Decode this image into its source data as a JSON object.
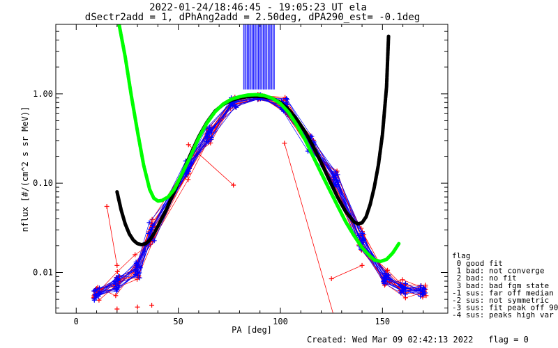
{
  "chart_data": {
    "type": "scatter",
    "title": "2022-01-24/18:46:45 - 19:05:23 UT ela",
    "subtitle": "dSectr2add = 1, dPhAng2add = 2.50deg, dPA290_est=  -0.1deg",
    "xlabel": "PA [deg]",
    "ylabel": "nflux [#/(cm^2 s sr MeV)]",
    "xlim": [
      -10,
      182
    ],
    "ylim": [
      0.0035,
      6.0
    ],
    "y_scale": "log",
    "x_ticks": [
      0,
      50,
      100,
      150
    ],
    "x_tick_labels": [
      "0",
      "50",
      "100",
      "150"
    ],
    "y_ticks": [
      0.01,
      0.1,
      1.0
    ],
    "y_tick_labels": [
      "0.01",
      "0.10",
      "1.00"
    ],
    "legend_placement": "right",
    "legend_title": "flag",
    "legend_entries": [
      " 0 good fit",
      " 1 bad: not converge",
      " 2 bad: no fit",
      " 3 bad: bad fgm state",
      "-1 sus: far off median",
      "-2 sus: not symmetric",
      "-3 sus: fit peak off 90",
      "-4 sus: peaks high var"
    ],
    "colors": {
      "red_series": "#ff0000",
      "blue_series": "#0000ff",
      "green_fit": "#00ff00",
      "black_fit": "#000000"
    },
    "green_fit": {
      "x": [
        21,
        24,
        27,
        30,
        33,
        36,
        38,
        40,
        42,
        45,
        48,
        52,
        56,
        60,
        64,
        68,
        72,
        76,
        80,
        84,
        88,
        92,
        96,
        100,
        104,
        108,
        112,
        116,
        120,
        124,
        128,
        132,
        136,
        140,
        143,
        146,
        149,
        152,
        155,
        158
      ],
      "y": [
        6.0,
        2.6,
        0.95,
        0.38,
        0.16,
        0.085,
        0.068,
        0.063,
        0.064,
        0.07,
        0.085,
        0.13,
        0.2,
        0.32,
        0.47,
        0.63,
        0.77,
        0.87,
        0.93,
        0.97,
        0.98,
        0.96,
        0.89,
        0.78,
        0.62,
        0.45,
        0.31,
        0.2,
        0.13,
        0.085,
        0.056,
        0.037,
        0.026,
        0.019,
        0.016,
        0.0138,
        0.0133,
        0.014,
        0.0165,
        0.021
      ]
    },
    "black_fit": {
      "x": [
        20,
        22,
        24,
        26,
        28,
        30,
        32,
        34,
        36,
        38,
        40,
        44,
        48,
        52,
        56,
        60,
        64,
        68,
        72,
        76,
        80,
        84,
        88,
        92,
        96,
        100,
        104,
        108,
        112,
        116,
        120,
        124,
        128,
        132,
        136,
        138,
        140,
        142,
        144,
        146,
        148,
        150,
        152,
        153
      ],
      "y": [
        0.08,
        0.05,
        0.035,
        0.027,
        0.023,
        0.021,
        0.0205,
        0.021,
        0.023,
        0.027,
        0.033,
        0.05,
        0.08,
        0.13,
        0.21,
        0.33,
        0.48,
        0.64,
        0.76,
        0.85,
        0.9,
        0.93,
        0.94,
        0.93,
        0.89,
        0.8,
        0.67,
        0.52,
        0.38,
        0.26,
        0.17,
        0.108,
        0.07,
        0.048,
        0.037,
        0.035,
        0.036,
        0.042,
        0.058,
        0.09,
        0.16,
        0.35,
        1.2,
        4.5
      ]
    },
    "pa_bins": [
      10,
      20,
      30,
      37,
      55,
      65,
      77,
      90,
      102,
      115,
      127,
      140,
      152,
      160,
      170
    ],
    "median_profile": [
      0.0055,
      0.0075,
      0.011,
      0.028,
      0.15,
      0.35,
      0.8,
      0.92,
      0.75,
      0.28,
      0.11,
      0.022,
      0.0085,
      0.0065,
      0.0062
    ],
    "red_series": [
      {
        "y": [
          0.0058,
          0.0102,
          0.0158,
          0.0206,
          0.1097,
          0.3126,
          0.796,
          0.954,
          0.9126,
          0.2656,
          0.1179,
          0.0185,
          0.0106,
          0.0076,
          0.0059
        ]
      },
      {
        "y": [
          0.0061,
          0.0076,
          0.0097,
          0.0393,
          0.1662,
          0.3565,
          0.6911,
          0.9119,
          0.5873,
          0.3126,
          0.0975,
          0.0185,
          0.0072,
          0.0083,
          0.0067
        ]
      },
      {
        "y": [
          0.0068,
          0.0055,
          0.0108,
          0.0329,
          0.1302,
          0.4074,
          0.8437,
          0.949,
          0.6726,
          0.2281,
          0.1204,
          0.0312,
          0.0077,
          0.0052,
          0.0059
        ]
      },
      {
        "y": [
          0.0049,
          0.0073,
          0.0106,
          0.0331,
          0.1815,
          0.2818,
          0.8599,
          0.8615,
          0.7689,
          0.3393,
          0.1003,
          0.0222,
          0.0104,
          0.0066,
          0.0062
        ]
      },
      {
        "y": [
          0.0061,
          0.0067,
          0.0084,
          0.0263,
          0.1266,
          0.3862,
          0.8316,
          0.9715,
          0.6957,
          0.2398,
          0.1364,
          0.0238,
          0.0074,
          0.0072,
          0.0072
        ]
      },
      {
        "y": [
          0.0064,
          0.009,
          0.0117,
          0.0247,
          0.1734,
          0.3055,
          0.7466,
          0.8766,
          0.8451,
          0.2952,
          0.0936,
          0.0192,
          0.0093,
          0.0061,
          0.0055
        ]
      },
      {
        "y": [
          0.0052,
          0.0066,
          0.0134,
          0.0298,
          0.1439,
          0.4202,
          0.8833,
          0.9269,
          0.6339,
          0.2513,
          0.1275,
          0.0264,
          0.0082,
          0.0071,
          0.0058
        ]
      },
      {
        "y": [
          0.0057,
          0.0083,
          0.0093,
          0.0221,
          0.1566,
          0.3391,
          0.7126,
          0.9858,
          0.7358,
          0.3206,
          0.1062,
          0.0217,
          0.0087,
          0.0058,
          0.0071
        ]
      },
      {
        "y": [
          0.0066,
          0.0069,
          0.0121,
          0.0354,
          0.1181,
          0.2967,
          0.8036,
          0.8935,
          0.8057,
          0.2806,
          0.0898,
          0.0203,
          0.0079,
          0.0068,
          0.0053
        ]
      },
      {
        "y": [
          0.0053,
          0.0088,
          0.0102,
          0.0285,
          0.1892,
          0.3702,
          0.9175,
          0.9333,
          0.6198,
          0.2234,
          0.1323,
          0.0254,
          0.0096,
          0.0063,
          0.0065
        ]
      },
      {
        "y": [
          0.0055,
          0.0072,
          0.0113,
          0.0242,
          0.1359,
          0.3258,
          0.7669,
          0.8862,
          0.7119,
          0.3024,
          0.1142,
          0.0178,
          0.0085,
          0.0074,
          0.0061
        ]
      },
      {
        "y": [
          0.0062,
          0.0079,
          0.0089,
          0.0317,
          0.1628,
          0.4019,
          0.8681,
          0.9655,
          0.8736,
          0.2617,
          0.1019,
          0.0287,
          0.0078,
          0.0065,
          0.0069
        ]
      }
    ],
    "blue_series": [
      {
        "y": [
          0.0052,
          0.0079,
          0.0113,
          0.0258,
          0.1452,
          0.3821,
          0.7512,
          0.9045,
          0.6783,
          0.2987,
          0.1056,
          0.0232,
          0.0081,
          0.0063,
          0.0057
        ]
      },
      {
        "y": [
          0.0059,
          0.0068,
          0.0095,
          0.0341,
          0.1277,
          0.3166,
          0.8552,
          0.9587,
          0.8264,
          0.2421,
          0.1219,
          0.0198,
          0.0092,
          0.0071,
          0.0064
        ]
      },
      {
        "y": [
          0.0063,
          0.0085,
          0.0126,
          0.0227,
          0.1716,
          0.2894,
          0.7243,
          0.8703,
          0.7457,
          0.3291,
          0.0957,
          0.0271,
          0.0076,
          0.0059,
          0.0068
        ]
      },
      {
        "y": [
          0.0056,
          0.0062,
          0.0101,
          0.0305,
          0.1389,
          0.4121,
          0.8915,
          0.9421,
          0.6512,
          0.2693,
          0.1291,
          0.0211,
          0.0098,
          0.0067,
          0.0054
        ]
      },
      {
        "y": [
          0.0049,
          0.0092,
          0.0087,
          0.0273,
          0.1855,
          0.3478,
          0.7811,
          0.9163,
          0.7932,
          0.2347,
          0.1101,
          0.0243,
          0.0084,
          0.0075,
          0.0062
        ]
      },
      {
        "y": [
          0.0067,
          0.0071,
          0.0119,
          0.0362,
          0.1234,
          0.3317,
          0.8218,
          0.8812,
          0.8593,
          0.3118,
          0.0914,
          0.0182,
          0.0089,
          0.0057,
          0.0066
        ]
      },
      {
        "y": [
          0.0054,
          0.0081,
          0.0131,
          0.0239,
          0.1593,
          0.3947,
          0.7064,
          0.9776,
          0.6422,
          0.2754,
          0.1338,
          0.0276,
          0.0075,
          0.0069,
          0.0059
        ]
      },
      {
        "y": [
          0.0061,
          0.0064,
          0.0098,
          0.0318,
          0.1411,
          0.2931,
          0.9036,
          0.9191,
          0.7586,
          0.2529,
          0.1027,
          0.0207,
          0.0094,
          0.0064,
          0.0071
        ]
      },
      {
        "y": [
          0.0058,
          0.0087,
          0.0109,
          0.0283,
          0.1773,
          0.3654,
          0.7397,
          0.8934,
          0.8851,
          0.3342,
          0.1172,
          0.0249,
          0.0083,
          0.0072,
          0.0056
        ]
      },
      {
        "y": [
          0.0065,
          0.0074,
          0.0092,
          0.0253,
          0.1315,
          0.4253,
          0.8764,
          0.9502,
          0.6655,
          0.2286,
          0.0981,
          0.0188,
          0.0079,
          0.0061,
          0.0063
        ]
      },
      {
        "y": [
          0.0051,
          0.0069,
          0.0124,
          0.0336,
          0.1679,
          0.3089,
          0.7927,
          0.8987,
          0.7211,
          0.2895,
          0.1246,
          0.0228,
          0.0091,
          0.0066,
          0.0067
        ]
      },
      {
        "y": [
          0.0057,
          0.0083,
          0.0104,
          0.0266,
          0.1493,
          0.3583,
          0.8367,
          0.9314,
          0.8119,
          0.2578,
          0.1083,
          0.0259,
          0.0086,
          0.0073,
          0.0058
        ]
      },
      {
        "y": [
          0.0062,
          0.0077,
          0.0115,
          0.0301,
          0.1356,
          0.3712,
          0.7735,
          0.9068,
          0.7012,
          0.3057,
          0.1154,
          0.0216,
          0.0082,
          0.0062,
          0.0065
        ]
      },
      {
        "y": [
          0.0055,
          0.0066,
          0.0099,
          0.0247,
          0.1634,
          0.3254,
          0.8689,
          0.9629,
          0.7745,
          0.2461,
          0.1012,
          0.0237,
          0.0088,
          0.0068,
          0.0061
        ]
      }
    ],
    "low_markers_red_x": [
      20,
      30,
      37
    ],
    "low_markers_red_y": [
      0.0039,
      0.0041,
      0.0043
    ],
    "outlier_red": [
      {
        "x": [
          15,
          20
        ],
        "y": [
          0.055,
          0.012
        ]
      },
      {
        "x": [
          125,
          140
        ],
        "y": [
          0.0085,
          0.012
        ]
      },
      {
        "x": [
          55,
          77
        ],
        "y": [
          0.27,
          0.095
        ]
      },
      {
        "x": [
          102,
          127
        ],
        "y": [
          0.28,
          0.0028
        ]
      }
    ],
    "footer_created": "Created: Wed Mar 09 02:42:13 2022",
    "footer_flag": "flag = 0"
  }
}
